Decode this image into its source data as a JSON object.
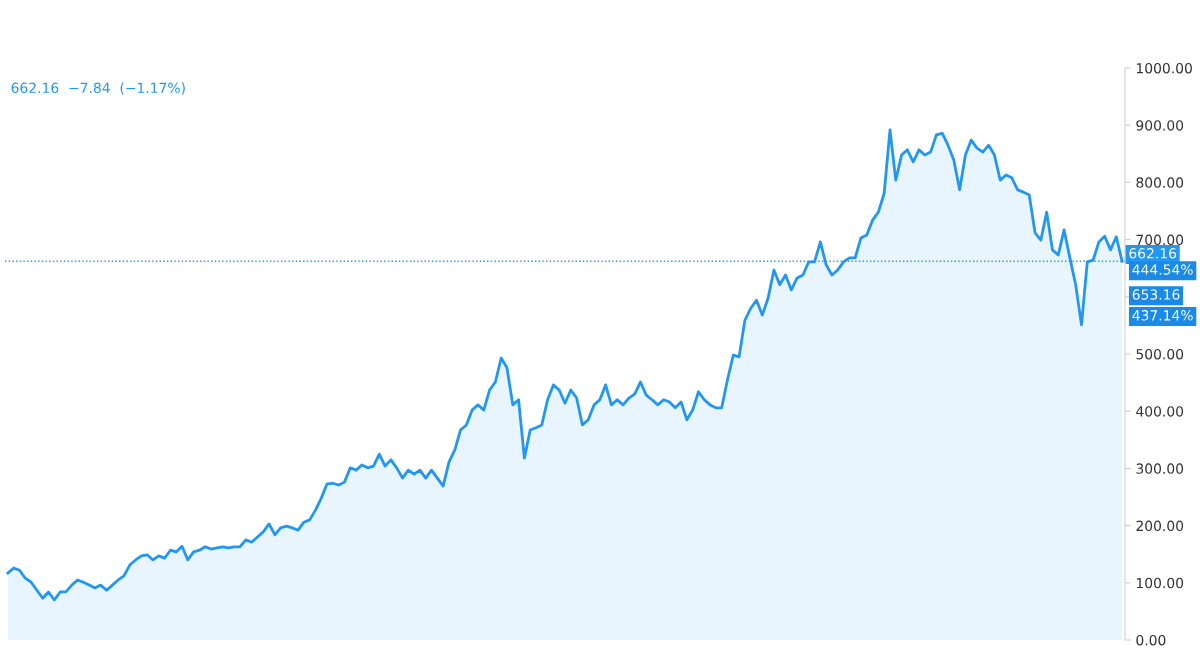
{
  "chart_data": {
    "type": "area",
    "color": "#2196f3",
    "categories": [
      null,
      null,
      null,
      null,
      null,
      null,
      null,
      null,
      null,
      null,
      null,
      null,
      null,
      null,
      null,
      null,
      null,
      null,
      null,
      null,
      null,
      null,
      null,
      null,
      null,
      null,
      null,
      null,
      null,
      null,
      null,
      null,
      null,
      null,
      null,
      null,
      null,
      null,
      null,
      null,
      null,
      null,
      null,
      null,
      null,
      null,
      null,
      null,
      null,
      null,
      null,
      null,
      null,
      null,
      null,
      null,
      null,
      null,
      null,
      null,
      null,
      null,
      null,
      null,
      null,
      null,
      null,
      null,
      null,
      null,
      null,
      null,
      null,
      null,
      null,
      null,
      null,
      null,
      null,
      null,
      null,
      null,
      null,
      null,
      null,
      null,
      null,
      null,
      null,
      null,
      null,
      null,
      null,
      null,
      null,
      null,
      null,
      null,
      null,
      null,
      null,
      null,
      null,
      null,
      null,
      null,
      null,
      null,
      null,
      null,
      null,
      null,
      null,
      null,
      null,
      null,
      null,
      null,
      null,
      null,
      null,
      null,
      null,
      null,
      null,
      null,
      null,
      null,
      null,
      null,
      null,
      null,
      null,
      null,
      null,
      null,
      null,
      null,
      null,
      null,
      null,
      null,
      null,
      null,
      null,
      null,
      null,
      null,
      null,
      null,
      null,
      null,
      null,
      null,
      null,
      null,
      null,
      null,
      null,
      null,
      null,
      null,
      null,
      null,
      null,
      null,
      null,
      null,
      null,
      null,
      null,
      null,
      null,
      null,
      null,
      null,
      null,
      null,
      null,
      null,
      null,
      null,
      null,
      null,
      null,
      null,
      null,
      null,
      null,
      null,
      null,
      null,
      null
    ],
    "values": [
      117,
      126,
      122,
      108,
      101,
      87,
      73,
      84,
      70,
      84,
      84,
      96,
      105,
      101,
      96,
      91,
      96,
      87,
      96,
      105,
      112,
      131,
      140,
      147,
      149,
      140,
      147,
      143,
      157,
      154,
      164,
      140,
      154,
      157,
      163,
      159,
      161,
      163,
      161,
      163,
      163,
      175,
      171,
      180,
      189,
      203,
      184,
      196,
      199,
      196,
      192,
      206,
      210,
      227,
      248,
      273,
      274,
      271,
      276,
      301,
      297,
      306,
      301,
      304,
      325,
      304,
      315,
      301,
      283,
      297,
      290,
      297,
      283,
      297,
      283,
      269,
      311,
      332,
      367,
      376,
      402,
      411,
      402,
      437,
      451,
      493,
      476,
      411,
      420,
      318,
      367,
      371,
      376,
      420,
      446,
      437,
      414,
      437,
      423,
      376,
      385,
      411,
      420,
      446,
      411,
      420,
      411,
      423,
      430,
      451,
      428,
      420,
      411,
      420,
      416,
      406,
      416,
      385,
      402,
      434,
      420,
      411,
      406,
      406,
      455,
      498,
      495,
      559,
      580,
      594,
      568,
      598,
      647,
      621,
      638,
      612,
      633,
      638,
      661,
      661,
      696,
      656,
      638,
      647,
      661,
      668,
      668,
      703,
      708,
      734,
      748,
      781,
      892,
      804,
      848,
      857,
      836,
      857,
      848,
      853,
      883,
      886,
      865,
      839,
      787,
      848,
      874,
      860,
      853,
      865,
      848,
      804,
      813,
      808,
      787,
      783,
      778,
      712,
      699,
      748,
      682,
      673,
      717,
      668,
      621,
      551,
      661,
      664,
      696,
      706,
      682,
      705,
      662
    ],
    "ylim": [
      0,
      1000
    ],
    "yticks": [
      {
        "value": 0,
        "label": "0.00"
      },
      {
        "value": 100,
        "label": "100.00"
      },
      {
        "value": 200,
        "label": "200.00"
      },
      {
        "value": 300,
        "label": "300.00"
      },
      {
        "value": 400,
        "label": "400.00"
      },
      {
        "value": 500,
        "label": "500.00"
      },
      {
        "value": 600,
        "label": null
      },
      {
        "value": 700,
        "label": "700.00"
      },
      {
        "value": 800,
        "label": "800.00"
      },
      {
        "value": 900,
        "label": "900.00"
      },
      {
        "value": 1000,
        "label": "1000.00"
      }
    ],
    "ref_lines": [
      {
        "axis": "y",
        "value": 662.16,
        "label": "662.16",
        "color": "#2196f3",
        "line_style": "dotted"
      }
    ],
    "annotations": [
      "662.16  −7.84  (−1.17%)",
      "444.54%",
      "653.16",
      "437.14%"
    ],
    "grid": false,
    "legend": false
  }
}
